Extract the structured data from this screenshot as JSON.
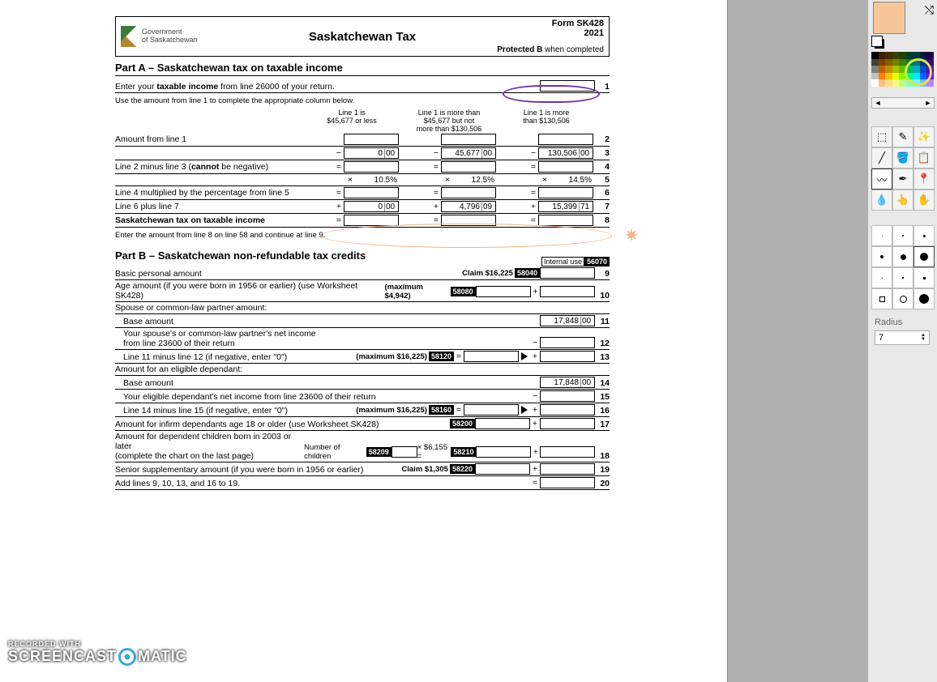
{
  "header": {
    "gov": "Government\nof Saskatchewan",
    "title": "Saskatchewan Tax",
    "form": "Form SK428",
    "year": "2021",
    "protected": "Protected B",
    "when": "when completed"
  },
  "partA": {
    "title": "Part A – Saskatchewan tax on taxable income",
    "enter_line": "Enter your",
    "taxable_income": "taxable income",
    "enter_line2": "from line 26000 of your return.",
    "use_line": "Use the amount from line 1 to complete the appropriate column below.",
    "col1_hdr": "Line 1 is\n$45,677 or less",
    "col2_hdr": "Line 1 is more than\n$45,677 but not\nmore than $130,506",
    "col3_hdr": "Line 1 is more\nthan $130,506",
    "rows": [
      {
        "label": "Amount from line 1",
        "n": "2"
      },
      {
        "label": "",
        "sub1": "0",
        "sub1c": "00",
        "sub2": "45,677",
        "sub2c": "00",
        "sub3": "130,506",
        "sub3c": "00",
        "op": "−",
        "n": "3"
      },
      {
        "label": "Line 2 minus line 3 (",
        "cannot": "cannot",
        "label2": " be negative)",
        "op": "=",
        "n": "4"
      },
      {
        "label": "",
        "p1": "10.5%",
        "p2": "12.5%",
        "p3": "14.5%",
        "op": "×",
        "n": "5"
      },
      {
        "label": "Line 4 multiplied by the percentage from line 5",
        "op": "=",
        "n": "6"
      },
      {
        "label": "Line 6 plus line 7",
        "sub1": "0",
        "sub1c": "00",
        "sub2": "4,796",
        "sub2c": "09",
        "sub3": "15,399",
        "sub3c": "71",
        "op": "+",
        "n": "7"
      },
      {
        "label": "Saskatchewan tax on taxable income",
        "op": "=",
        "n": "8",
        "bold": true
      }
    ],
    "enter_bottom": "Enter the amount from line 8 on line 58 and continue at line 9."
  },
  "partB": {
    "title": "Part B – Saskatchewan non-refundable tax credits",
    "internal": "Internal use",
    "internal_code": "56070",
    "lines": [
      {
        "label": "Basic personal amount",
        "claim": "Claim $16,225",
        "code": "58040",
        "op": "",
        "n": "9"
      },
      {
        "label": "Age amount (if you were born in 1956 or earlier) (use Worksheet SK428)",
        "max": "(maximum $4,942)",
        "code": "58080",
        "op": "+",
        "n": "10"
      },
      {
        "label": "Spouse or common-law partner amount:",
        "header": true
      },
      {
        "label": "Base amount",
        "indent": true,
        "val": "17,848",
        "valc": "00",
        "n": "11"
      },
      {
        "label": "Your spouse's or common-law partner's net income\nfrom line 23600 of their return",
        "indent": true,
        "op": "−",
        "n": "12"
      },
      {
        "label": "Line 11 minus line 12 (if negative, enter \"0\")",
        "indent": true,
        "max": "(maximum $16,225)",
        "code": "58120",
        "eq": "=",
        "tri": true,
        "op": "+",
        "n": "13"
      },
      {
        "label": "Amount for an eligible dependant:",
        "header": true
      },
      {
        "label": "Base amount",
        "indent": true,
        "val": "17,848",
        "valc": "00",
        "n": "14"
      },
      {
        "label": "Your eligible dependant's net income from line 23600 of their return",
        "indent": true,
        "op": "−",
        "n": "15"
      },
      {
        "label": "Line 14 minus line 15 (if negative, enter \"0\")",
        "indent": true,
        "max": "(maximum $16,225)",
        "code": "58160",
        "eq": "=",
        "tri": true,
        "op": "+",
        "n": "16"
      },
      {
        "label": "Amount for infirm dependants age 18 or older (use Worksheet SK428)",
        "code": "58200",
        "op": "+",
        "n": "17"
      },
      {
        "label": "Amount for dependent children born in 2003 or later\n(complete the chart on the last page)",
        "children": "Number of children",
        "chcode": "58209",
        "mult": "× $6,155 =",
        "code": "58210",
        "op": "+",
        "n": "18"
      },
      {
        "label": "Senior supplementary amount (if you were born in 1956 or earlier)",
        "claim": "Claim $1,305",
        "code": "58220",
        "op": "+",
        "n": "19"
      },
      {
        "label": "Add lines 9, 10, 13, and 16 to 19.",
        "op": "=",
        "n": "20"
      }
    ]
  },
  "colors": {
    "current": "#f5c69a",
    "highlight": "#d6e84a",
    "palette": [
      "#000000",
      "#402000",
      "#403000",
      "#3a4000",
      "#204000",
      "#004020",
      "#003a40",
      "#001a40",
      "#200040",
      "#404040",
      "#804000",
      "#806000",
      "#748000",
      "#408000",
      "#008040",
      "#007480",
      "#003480",
      "#400080",
      "#808080",
      "#c06000",
      "#c09000",
      "#aec000",
      "#60c000",
      "#00c060",
      "#00aec0",
      "#004ec0",
      "#6000c0",
      "#c0c0c0",
      "#ff8000",
      "#ffc000",
      "#e8ff00",
      "#80ff00",
      "#00ff80",
      "#00e8ff",
      "#0068ff",
      "#8000ff",
      "#ffffff",
      "#ffc080",
      "#ffe080",
      "#f4ff80",
      "#c0ff80",
      "#80ffc0",
      "#80f4ff",
      "#80b4ff",
      "#c080ff"
    ]
  },
  "tools": {
    "items": [
      "⬚",
      "✎",
      "✨",
      "╱",
      "🪣",
      "📋",
      "〰",
      "✒",
      "📍",
      "💧",
      "👆",
      "✋"
    ],
    "selected": 6,
    "radius_label": "Radius",
    "radius": "7"
  },
  "brushes": {
    "dots": [
      1,
      2,
      3
    ],
    "circles": [
      4,
      7,
      10
    ],
    "tiny": [
      1,
      2,
      3
    ],
    "squares": [
      4,
      7,
      10
    ],
    "selected_row": 1,
    "selected_col": 2
  },
  "watermark": {
    "rw": "RECORDED WITH",
    "brand1": "SCREENCAST",
    "brand2": "MATIC"
  }
}
